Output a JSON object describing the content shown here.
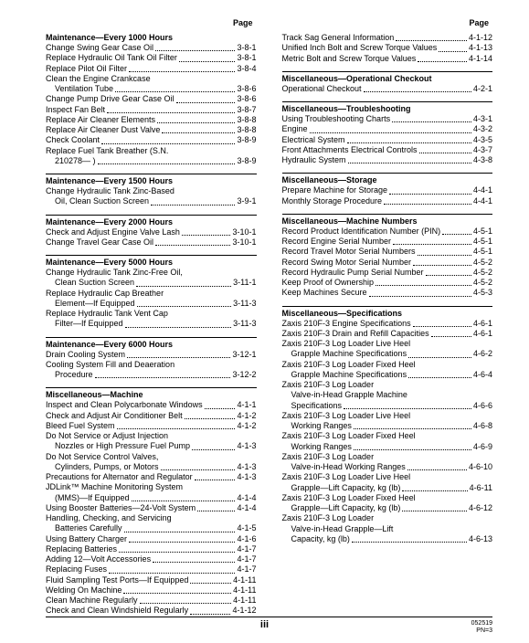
{
  "headers": {
    "page": "Page"
  },
  "footer": {
    "center": "iii",
    "small1": "052519",
    "small2": "PN=3"
  },
  "columns": [
    {
      "sections": [
        {
          "title": "Maintenance—Every 1000 Hours",
          "first": true,
          "items": [
            {
              "lines": [
                "Change Swing Gear Case Oil"
              ],
              "page": "3-8-1"
            },
            {
              "lines": [
                "Replace Hydraulic Oil Tank Oil Filter"
              ],
              "page": "3-8-1"
            },
            {
              "lines": [
                "Replace Pilot Oil Filter"
              ],
              "page": "3-8-4"
            },
            {
              "lines": [
                "Clean the Engine Crankcase",
                "Ventilation Tube"
              ],
              "page": "3-8-6"
            },
            {
              "lines": [
                "Change Pump Drive Gear Case Oil"
              ],
              "page": "3-8-6"
            },
            {
              "lines": [
                "Inspect Fan Belt"
              ],
              "page": "3-8-7"
            },
            {
              "lines": [
                "Replace Air Cleaner Elements"
              ],
              "page": "3-8-8"
            },
            {
              "lines": [
                "Replace Air Cleaner Dust Valve"
              ],
              "page": "3-8-8"
            },
            {
              "lines": [
                "Check Coolant"
              ],
              "page": "3-8-9"
            },
            {
              "lines": [
                "Replace Fuel Tank Breather (S.N.",
                "210278— )"
              ],
              "page": "3-8-9"
            }
          ]
        },
        {
          "title": "Maintenance—Every 1500 Hours",
          "items": [
            {
              "lines": [
                "Change Hydraulic Tank Zinc-Based",
                "Oil, Clean Suction Screen"
              ],
              "page": "3-9-1"
            }
          ]
        },
        {
          "title": "Maintenance—Every 2000 Hours",
          "items": [
            {
              "lines": [
                "Check and Adjust Engine Valve Lash"
              ],
              "page": "3-10-1"
            },
            {
              "lines": [
                "Change Travel Gear Case Oil"
              ],
              "page": "3-10-1"
            }
          ]
        },
        {
          "title": "Maintenance—Every 5000 Hours",
          "items": [
            {
              "lines": [
                "Change Hydraulic Tank Zinc-Free Oil,",
                "Clean Suction Screen"
              ],
              "page": "3-11-1"
            },
            {
              "lines": [
                "Replace Hydraulic Cap Breather",
                "Element—If Equipped"
              ],
              "page": "3-11-3"
            },
            {
              "lines": [
                "Replace Hydraulic Tank Vent Cap",
                "Filter—If Equipped"
              ],
              "page": "3-11-3"
            }
          ]
        },
        {
          "title": "Maintenance—Every 6000 Hours",
          "items": [
            {
              "lines": [
                "Drain Cooling System"
              ],
              "page": "3-12-1"
            },
            {
              "lines": [
                "Cooling System Fill and Deaeration",
                "Procedure"
              ],
              "page": "3-12-2"
            }
          ]
        },
        {
          "title": "Miscellaneous—Machine",
          "items": [
            {
              "lines": [
                "Inspect and Clean Polycarbonate Windows"
              ],
              "page": "4-1-1"
            },
            {
              "lines": [
                "Check and Adjust Air Conditioner Belt"
              ],
              "page": "4-1-2"
            },
            {
              "lines": [
                "Bleed Fuel System"
              ],
              "page": "4-1-2"
            },
            {
              "lines": [
                "Do Not Service or Adjust Injection",
                "Nozzles or High Pressure Fuel Pump"
              ],
              "page": "4-1-3"
            },
            {
              "lines": [
                "Do Not Service Control Valves,",
                "Cylinders, Pumps, or Motors"
              ],
              "page": "4-1-3"
            },
            {
              "lines": [
                "Precautions for Alternator and Regulator"
              ],
              "page": "4-1-3"
            },
            {
              "lines": [
                "JDLink™ Machine Monitoring System",
                "(MMS)—If Equipped"
              ],
              "page": "4-1-4"
            },
            {
              "lines": [
                "Using Booster Batteries—24-Volt System"
              ],
              "page": "4-1-4"
            },
            {
              "lines": [
                "Handling, Checking, and Servicing",
                "Batteries Carefully"
              ],
              "page": "4-1-5"
            },
            {
              "lines": [
                "Using Battery Charger"
              ],
              "page": "4-1-6"
            },
            {
              "lines": [
                "Replacing Batteries"
              ],
              "page": "4-1-7"
            },
            {
              "lines": [
                "Adding 12—Volt Accessories"
              ],
              "page": "4-1-7"
            },
            {
              "lines": [
                "Replacing Fuses"
              ],
              "page": "4-1-7"
            },
            {
              "lines": [
                "Fluid Sampling Test Ports—If Equipped"
              ],
              "page": "4-1-11"
            },
            {
              "lines": [
                "Welding On Machine"
              ],
              "page": "4-1-11"
            },
            {
              "lines": [
                "Clean Machine Regularly"
              ],
              "page": "4-1-11"
            },
            {
              "lines": [
                "Check and Clean Windshield Regularly"
              ],
              "page": "4-1-12"
            }
          ]
        }
      ]
    },
    {
      "sections": [
        {
          "title": "",
          "first": true,
          "items": [
            {
              "lines": [
                "Track Sag General Information"
              ],
              "page": "4-1-12"
            },
            {
              "lines": [
                "Unified Inch Bolt and Screw Torque Values"
              ],
              "page": "4-1-13"
            },
            {
              "lines": [
                "Metric Bolt and Screw Torque Values"
              ],
              "page": "4-1-14"
            }
          ]
        },
        {
          "title": "Miscellaneous—Operational Checkout",
          "items": [
            {
              "lines": [
                "Operational Checkout"
              ],
              "page": "4-2-1"
            }
          ]
        },
        {
          "title": "Miscellaneous—Troubleshooting",
          "items": [
            {
              "lines": [
                "Using Troubleshooting Charts"
              ],
              "page": "4-3-1"
            },
            {
              "lines": [
                "Engine"
              ],
              "page": "4-3-2"
            },
            {
              "lines": [
                "Electrical System"
              ],
              "page": "4-3-5"
            },
            {
              "lines": [
                "Front Attachments Electrical Controls"
              ],
              "page": "4-3-7"
            },
            {
              "lines": [
                "Hydraulic System"
              ],
              "page": "4-3-8"
            }
          ]
        },
        {
          "title": "Miscellaneous—Storage",
          "items": [
            {
              "lines": [
                "Prepare Machine for Storage"
              ],
              "page": "4-4-1"
            },
            {
              "lines": [
                "Monthly Storage Procedure"
              ],
              "page": "4-4-1"
            }
          ]
        },
        {
          "title": "Miscellaneous—Machine Numbers",
          "items": [
            {
              "lines": [
                "Record Product Identification Number (PIN)"
              ],
              "page": "4-5-1"
            },
            {
              "lines": [
                "Record Engine Serial Number"
              ],
              "page": "4-5-1"
            },
            {
              "lines": [
                "Record Travel Motor Serial Numbers"
              ],
              "page": "4-5-1"
            },
            {
              "lines": [
                "Record Swing Motor Serial Number"
              ],
              "page": "4-5-2"
            },
            {
              "lines": [
                "Record Hydraulic Pump Serial Number"
              ],
              "page": "4-5-2"
            },
            {
              "lines": [
                "Keep Proof of Ownership"
              ],
              "page": "4-5-2"
            },
            {
              "lines": [
                "Keep Machines Secure"
              ],
              "page": "4-5-3"
            }
          ]
        },
        {
          "title": "Miscellaneous—Specifications",
          "items": [
            {
              "lines": [
                "Zaxis 210F-3 Engine Specifications"
              ],
              "page": "4-6-1"
            },
            {
              "lines": [
                "Zaxis 210F-3 Drain and Refill Capacities"
              ],
              "page": "4-6-1"
            },
            {
              "lines": [
                "Zaxis 210F-3 Log Loader Live Heel",
                "Grapple Machine Specifications"
              ],
              "page": "4-6-2"
            },
            {
              "lines": [
                "Zaxis 210F-3 Log Loader Fixed Heel",
                "Grapple Machine Specifications"
              ],
              "page": "4-6-4"
            },
            {
              "lines": [
                "Zaxis 210F-3 Log Loader",
                "Valve-in-Head Grapple Machine",
                "Specifications"
              ],
              "page": "4-6-6"
            },
            {
              "lines": [
                "Zaxis 210F-3 Log Loader Live Heel",
                "Working Ranges"
              ],
              "page": "4-6-8"
            },
            {
              "lines": [
                "Zaxis 210F-3 Log Loader Fixed Heel",
                "Working Ranges"
              ],
              "page": "4-6-9"
            },
            {
              "lines": [
                "Zaxis 210F-3 Log Loader",
                "Valve-in-Head Working Ranges"
              ],
              "page": "4-6-10"
            },
            {
              "lines": [
                "Zaxis 210F-3 Log Loader Live Heel",
                "Grapple—Lift Capacity, kg (lb)"
              ],
              "page": "4-6-11"
            },
            {
              "lines": [
                "Zaxis 210F-3 Log Loader Fixed Heel",
                "Grapple—Lift Capacity, kg (lb)"
              ],
              "page": "4-6-12"
            },
            {
              "lines": [
                "Zaxis 210F-3 Log Loader",
                "Valve-in-Head Grapple—Lift",
                "Capacity, kg (lb)"
              ],
              "page": "4-6-13"
            }
          ]
        }
      ]
    }
  ]
}
